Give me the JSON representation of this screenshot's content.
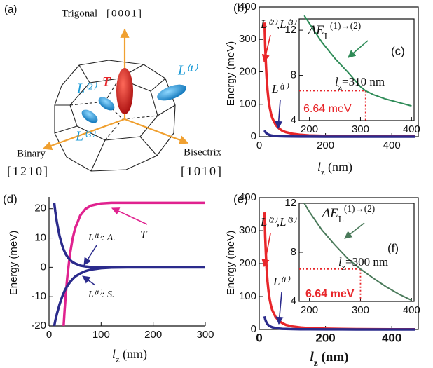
{
  "diagram": {
    "panel_label": "(a)",
    "trigonal": "Trigonal",
    "trigonal_index": "[0001]",
    "binary": "Binary",
    "binary_index": "[12̄10]",
    "bisectrix": "Bisectrix",
    "bisectrix_index": "[101̄0]",
    "point_t": "T",
    "point_l1": "L⁽¹⁾",
    "point_l2": "L⁽²⁾",
    "point_l3": "L⁽³⁾"
  },
  "chart_data": [
    {
      "type": "line",
      "panel_label": "(b)",
      "frame": true,
      "ylabel": "Energy (meV)",
      "xlabel": [
        {
          "t": "l",
          "s": "italic"
        },
        {
          "t": "z",
          "s": "sub"
        },
        {
          "t": " (nm)",
          "s": "normal"
        }
      ],
      "xlim": [
        0,
        480
      ],
      "ylim": [
        0,
        400
      ],
      "xticks": [
        0,
        200,
        400
      ],
      "yticks": [
        0,
        100,
        200,
        300,
        400
      ],
      "x": [
        16,
        18,
        20,
        22,
        25,
        28,
        32,
        36,
        40,
        50,
        60,
        70,
        80,
        100,
        125,
        150,
        200,
        250,
        300,
        350,
        400,
        470
      ],
      "series": [
        {
          "name": "L⁽²⁾,L⁽³⁾",
          "color": "#e8262a",
          "values": [
            352,
            278,
            225,
            186,
            144,
            115,
            88,
            69,
            56,
            36,
            25,
            18,
            14,
            9,
            5.8,
            4,
            2.3,
            1.4,
            1,
            0.7,
            0.6,
            0.4
          ]
        },
        {
          "name": "L⁽¹⁾",
          "color": "#2b2b8c",
          "values": [
            19.5,
            15.4,
            12.5,
            10.3,
            8,
            6.4,
            4.9,
            3.9,
            3.1,
            2,
            1.4,
            1,
            0.8,
            0.5,
            0.3,
            0.2,
            0.1,
            0.1,
            0.1,
            0.1,
            0.1,
            0.1
          ]
        }
      ]
    },
    {
      "type": "line",
      "panel_label": "(c)",
      "frame": true,
      "title": [
        {
          "t": "ΔE",
          "s": "italic"
        },
        {
          "t": "L",
          "s": "sub"
        },
        {
          "t": "(1)→(2)",
          "s": "super"
        }
      ],
      "annotation": [
        {
          "t": "l",
          "s": "italic"
        },
        {
          "t": "z",
          "s": "sub"
        },
        {
          "t": "=310 nm",
          "s": "normal"
        }
      ],
      "reference_label": "6.64 meV",
      "reference": {
        "x": 310,
        "y": 6.64,
        "color": "#e8262a"
      },
      "xlim": [
        180,
        405
      ],
      "ylim": [
        4,
        13
      ],
      "xticks": [
        200,
        300,
        400
      ],
      "yticks": [
        4,
        8,
        12
      ],
      "x": [
        190,
        200,
        225,
        250,
        275,
        300,
        310,
        325,
        350,
        375,
        400
      ],
      "series": [
        {
          "color": "#2e8b57",
          "values": [
            13.3,
            12.6,
            10.9,
            9.5,
            8.3,
            7.0,
            6.64,
            6.3,
            5.9,
            5.6,
            5.3
          ]
        }
      ]
    },
    {
      "type": "line",
      "panel_label": "(d)",
      "frame": false,
      "ylabel": "Energy (meV)",
      "xlabel": [
        {
          "t": "l",
          "s": "italic"
        },
        {
          "t": "z",
          "s": "sub"
        },
        {
          "t": " (nm)",
          "s": "normal"
        }
      ],
      "xlim": [
        0,
        300
      ],
      "ylim": [
        -20,
        24
      ],
      "xticks": [
        0,
        100,
        200,
        300
      ],
      "yticks": [
        -20,
        -10,
        0,
        10,
        20
      ],
      "x": [
        10,
        12,
        15,
        20,
        25,
        28,
        30,
        32,
        35,
        40,
        45,
        50,
        60,
        70,
        80,
        100,
        120,
        150,
        200,
        250,
        300
      ],
      "series": [
        {
          "name": "T",
          "color": "#e0228f",
          "values": [
            null,
            null,
            null,
            null,
            null,
            -20,
            -14.4,
            -9.5,
            -3.5,
            4.2,
            9.5,
            13.3,
            17.7,
            19.9,
            21,
            21.8,
            22,
            22,
            22,
            22,
            22
          ]
        },
        {
          "name": "L⁽¹⁾: A.",
          "color": "#2b2b8c",
          "values": [
            22,
            19.1,
            15.4,
            10.8,
            7.6,
            6.1,
            5.3,
            4.5,
            3.7,
            2.6,
            1.8,
            1.3,
            0.6,
            0.3,
            0.1,
            0,
            0,
            0,
            0,
            0,
            0
          ]
        },
        {
          "name": "L⁽¹⁾: S.",
          "color": "#2b2b8c",
          "values": [
            -20,
            -18.2,
            -15.9,
            -12.7,
            -10.1,
            -8.8,
            -8,
            -7.3,
            -6.4,
            -5.1,
            -4.1,
            -3.2,
            -2.1,
            -1.3,
            -0.8,
            -0.3,
            -0.1,
            0,
            0,
            0,
            0
          ]
        }
      ]
    },
    {
      "type": "line",
      "panel_label": "(e)",
      "frame": true,
      "ylabel": "Energy (meV)",
      "xlabel": [
        {
          "t": "l",
          "s": "italic"
        },
        {
          "t": "z",
          "s": "sub"
        },
        {
          "t": " (nm)",
          "s": "normal"
        }
      ],
      "xlim": [
        0,
        480
      ],
      "ylim": [
        0,
        400
      ],
      "xticks": [
        0,
        200,
        400
      ],
      "yticks": [
        0,
        100,
        200,
        300,
        400
      ],
      "x": [
        16,
        18,
        20,
        22,
        25,
        28,
        32,
        36,
        40,
        50,
        60,
        70,
        80,
        100,
        125,
        150,
        200,
        250,
        300,
        350,
        400,
        470
      ],
      "series": [
        {
          "name": "L⁽²⁾,L⁽³⁾",
          "color": "#e8262a",
          "values": [
            355,
            281,
            228,
            188,
            146,
            117,
            89,
            70,
            57,
            37,
            26,
            19,
            14,
            9.2,
            5.9,
            4.1,
            2.3,
            1.5,
            1,
            0.8,
            0.6,
            0.4
          ]
        },
        {
          "name": "L⁽¹⁾",
          "color": "#2b2b8c",
          "values": [
            40,
            31,
            25,
            21,
            16,
            13,
            10,
            8,
            6.3,
            4,
            2.8,
            2,
            1.6,
            1,
            0.6,
            0.4,
            0.2,
            0.2,
            0.1,
            0.1,
            0.1,
            0.1
          ]
        }
      ]
    },
    {
      "type": "line",
      "panel_label": "(f)",
      "frame": true,
      "title": [
        {
          "t": "ΔE",
          "s": "italic"
        },
        {
          "t": "L",
          "s": "sub"
        },
        {
          "t": "(1)→(2)",
          "s": "super"
        }
      ],
      "annotation": [
        {
          "t": "l",
          "s": "italic"
        },
        {
          "t": "z",
          "s": "sub"
        },
        {
          "t": "=300 nm",
          "s": "normal"
        }
      ],
      "reference_label": "6.64 meV",
      "reference": {
        "x": 300,
        "y": 6.64,
        "color": "#e8262a"
      },
      "xlim": [
        180,
        405
      ],
      "ylim": [
        4,
        12
      ],
      "xticks": [
        200,
        300,
        400
      ],
      "yticks": [
        4,
        8,
        12
      ],
      "x": [
        190,
        200,
        225,
        250,
        275,
        300,
        325,
        350,
        375,
        400
      ],
      "series": [
        {
          "color": "#4a7a5a",
          "values": [
            12,
            11.3,
            9.8,
            8.6,
            7.5,
            6.64,
            5.9,
            5.2,
            4.6,
            4.1
          ]
        }
      ]
    }
  ]
}
